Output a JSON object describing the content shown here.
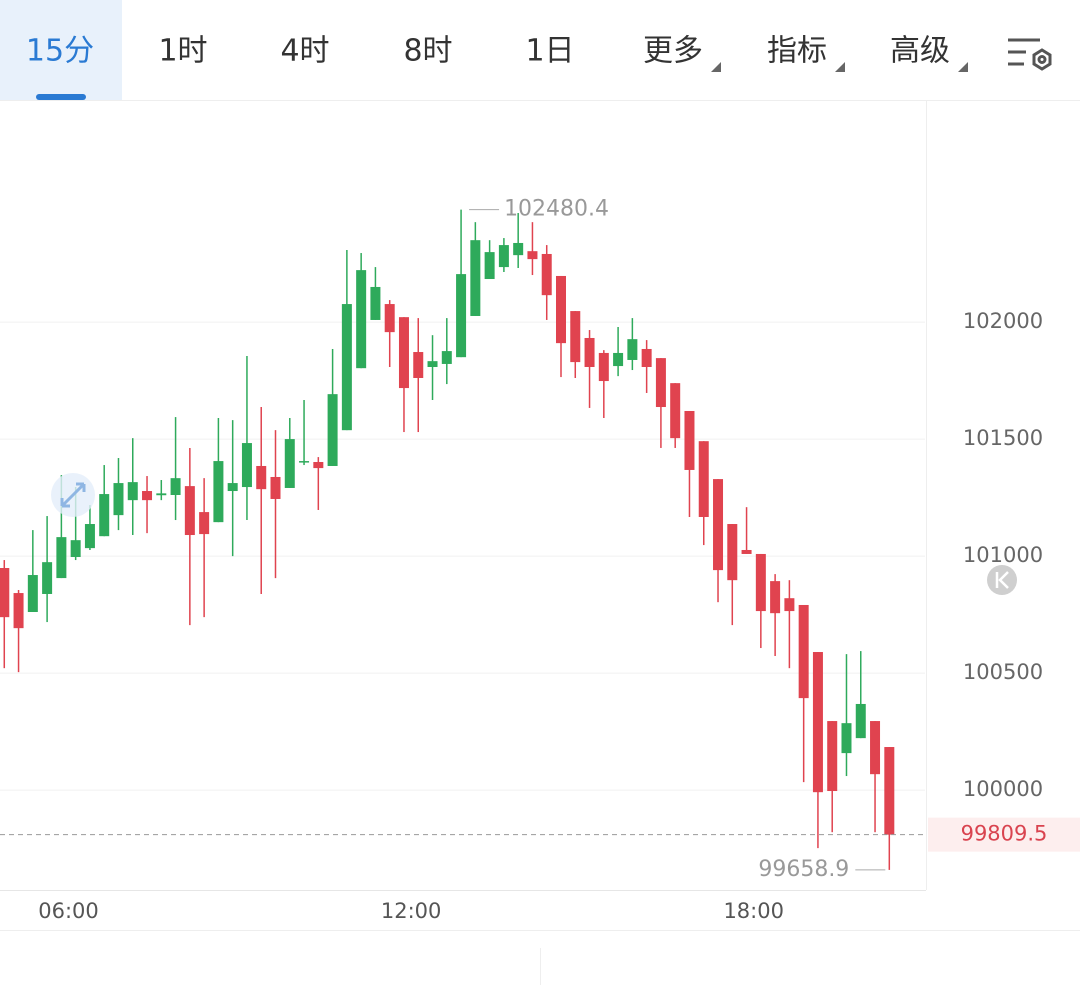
{
  "tabs": [
    {
      "label": "15分",
      "active": true
    },
    {
      "label": "1时",
      "active": false
    },
    {
      "label": "4时",
      "active": false
    },
    {
      "label": "8时",
      "active": false
    },
    {
      "label": "1日",
      "active": false
    }
  ],
  "menus": [
    "更多",
    "指标",
    "高级"
  ],
  "chart_data": {
    "type": "candlestick",
    "x": [
      4.75,
      5,
      5.25,
      5.5,
      5.75,
      6,
      6.25,
      6.5,
      6.75,
      7,
      7.25,
      7.5,
      7.75,
      8,
      8.25,
      8.5,
      8.75,
      9,
      9.25,
      9.5,
      9.75,
      10,
      10.25,
      10.5,
      10.75,
      11,
      11.25,
      11.5,
      11.75,
      12,
      12.25,
      12.5,
      12.75,
      13,
      13.25,
      13.5,
      13.75,
      14,
      14.25,
      14.5,
      14.75,
      15,
      15.25,
      15.5,
      15.75,
      16,
      16.25,
      16.5,
      16.75,
      17,
      17.25,
      17.5,
      17.75,
      18,
      18.25,
      18.5,
      18.75,
      19,
      19.25,
      19.5,
      19.75,
      20,
      20.25
    ],
    "open": [
      100949,
      100842,
      100761,
      100838,
      100906,
      100996,
      101034,
      101085,
      101175,
      101239,
      101278,
      101260,
      101261,
      101299,
      101188,
      101145,
      101278,
      101295,
      101385,
      101338,
      101291,
      101402,
      101402,
      101385,
      101538,
      101803,
      102009,
      102077,
      102021,
      101872,
      101808,
      101821,
      101850,
      102026,
      102184,
      102235,
      102286,
      102303,
      102291,
      102197,
      102047,
      101932,
      101868,
      101812,
      101838,
      101885,
      101846,
      101739,
      101620,
      101491,
      101329,
      101137,
      101026,
      101009,
      100893,
      100820,
      100791,
      100590,
      100295,
      100158,
      100222,
      100295,
      100184
    ],
    "high": [
      100983,
      100855,
      101111,
      101171,
      101346,
      101295,
      101218,
      101389,
      101419,
      101504,
      101342,
      101325,
      101594,
      101462,
      101333,
      101590,
      101581,
      101855,
      101637,
      101538,
      101590,
      101667,
      101423,
      101885,
      102308,
      102295,
      102235,
      102094,
      102021,
      102017,
      101944,
      102017,
      102480.4,
      102427,
      102350,
      102359,
      102466,
      102427,
      102329,
      102197,
      102047,
      101966,
      101880,
      101979,
      102017,
      101923,
      101846,
      101739,
      101620,
      101491,
      101329,
      101137,
      101209,
      101009,
      100923,
      100897,
      100791,
      100590,
      100295,
      100581,
      100594,
      100295,
      100184
    ],
    "low": [
      100521,
      100504,
      100761,
      100718,
      100906,
      100983,
      101026,
      101085,
      101111,
      101090,
      101098,
      101239,
      101154,
      100705,
      100739,
      101145,
      101000,
      101154,
      100838,
      100906,
      101291,
      101389,
      101197,
      101385,
      101538,
      101803,
      102009,
      101808,
      101530,
      101530,
      101667,
      101735,
      101850,
      102026,
      102184,
      102214,
      102231,
      102201,
      102009,
      101765,
      101761,
      101633,
      101590,
      101769,
      101795,
      101697,
      101462,
      101462,
      101167,
      101047,
      100803,
      100705,
      101009,
      100607,
      100573,
      100521,
      100034,
      99752,
      99820,
      100060,
      100222,
      99820,
      99658.9
    ],
    "close": [
      100739,
      100692,
      100919,
      100974,
      101081,
      101068,
      101137,
      101265,
      101312,
      101316,
      101239,
      101268,
      101333,
      101090,
      101094,
      101406,
      101312,
      101483,
      101286,
      101244,
      101500,
      101406,
      101376,
      101692,
      102077,
      102222,
      102150,
      101957,
      101718,
      101761,
      101833,
      101876,
      102205,
      102350,
      102299,
      102329,
      102338,
      102269,
      102115,
      101910,
      101829,
      101808,
      101748,
      101868,
      101927,
      101808,
      101637,
      101504,
      101368,
      101167,
      100940,
      100897,
      101009,
      100765,
      100756,
      100765,
      100393,
      99991,
      99996,
      100286,
      100368,
      100068,
      99809.5
    ],
    "up_color": "#2eaa5b",
    "down_color": "#e0434f",
    "xlim": [
      4.8,
      21.0
    ],
    "xticks": [
      {
        "value": 6,
        "label": "06:00"
      },
      {
        "value": 12,
        "label": "12:00"
      },
      {
        "value": 18,
        "label": "18:00"
      }
    ],
    "ylim": [
      99573,
      102949
    ],
    "yticks": [
      100000,
      100500,
      101000,
      101500,
      102000
    ],
    "grid": true,
    "high_label": 102480.4,
    "low_label": 99658.9,
    "last_price": 99809.5
  }
}
